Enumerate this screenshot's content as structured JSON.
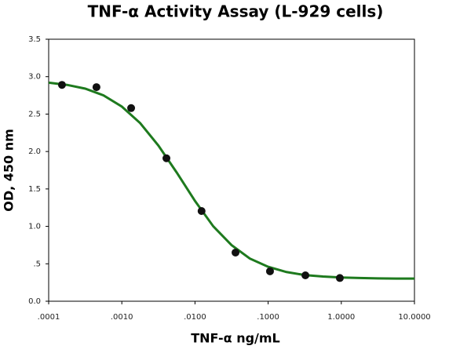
{
  "chart_data": {
    "type": "scatter",
    "title": "TNF-α Activity Assay (L-929 cells)",
    "x_label": "TNF-α ng/mL",
    "y_label": "OD, 450 nm",
    "x_scale": "log",
    "grid": false,
    "xlim": [
      0.0001,
      10
    ],
    "ylim": [
      0,
      3.5
    ],
    "xticks": [
      {
        "value": 0.0001,
        "label": ".0001"
      },
      {
        "value": 0.001,
        "label": ".0010"
      },
      {
        "value": 0.01,
        "label": ".0100"
      },
      {
        "value": 0.1,
        "label": ".1000"
      },
      {
        "value": 1,
        "label": "1.0000"
      },
      {
        "value": 10,
        "label": "10.0000"
      }
    ],
    "yticks": [
      {
        "value": 0,
        "label": "0.0"
      },
      {
        "value": 0.5,
        "label": ".5"
      },
      {
        "value": 1,
        "label": "1.0"
      },
      1.5,
      {
        "value": 2,
        "label": "2.0"
      },
      2.5,
      {
        "value": 3,
        "label": "3.0"
      },
      3.5
    ],
    "series": [
      {
        "type": "line",
        "color": "#1e7a1e",
        "x": [
          0.0001,
          0.000178,
          0.000316,
          0.000562,
          0.001,
          0.00178,
          0.00316,
          0.00562,
          0.01,
          0.0178,
          0.0316,
          0.0562,
          0.1,
          0.178,
          0.316,
          0.562,
          1,
          1.78,
          3.16,
          5.62,
          10
        ],
        "values": [
          2.92,
          2.89,
          2.84,
          2.75,
          2.6,
          2.38,
          2.08,
          1.72,
          1.34,
          1.0,
          0.75,
          0.57,
          0.46,
          0.39,
          0.35,
          0.33,
          0.317,
          0.31,
          0.305,
          0.303,
          0.302
        ]
      },
      {
        "type": "scatter",
        "color": "#111111",
        "x": [
          0.000152,
          0.00045,
          0.00134,
          0.00407,
          0.0123,
          0.0358,
          0.106,
          0.323,
          0.955
        ],
        "values": [
          2.89,
          2.86,
          2.58,
          1.91,
          1.205,
          0.65,
          0.4,
          0.346,
          0.31
        ]
      }
    ]
  }
}
